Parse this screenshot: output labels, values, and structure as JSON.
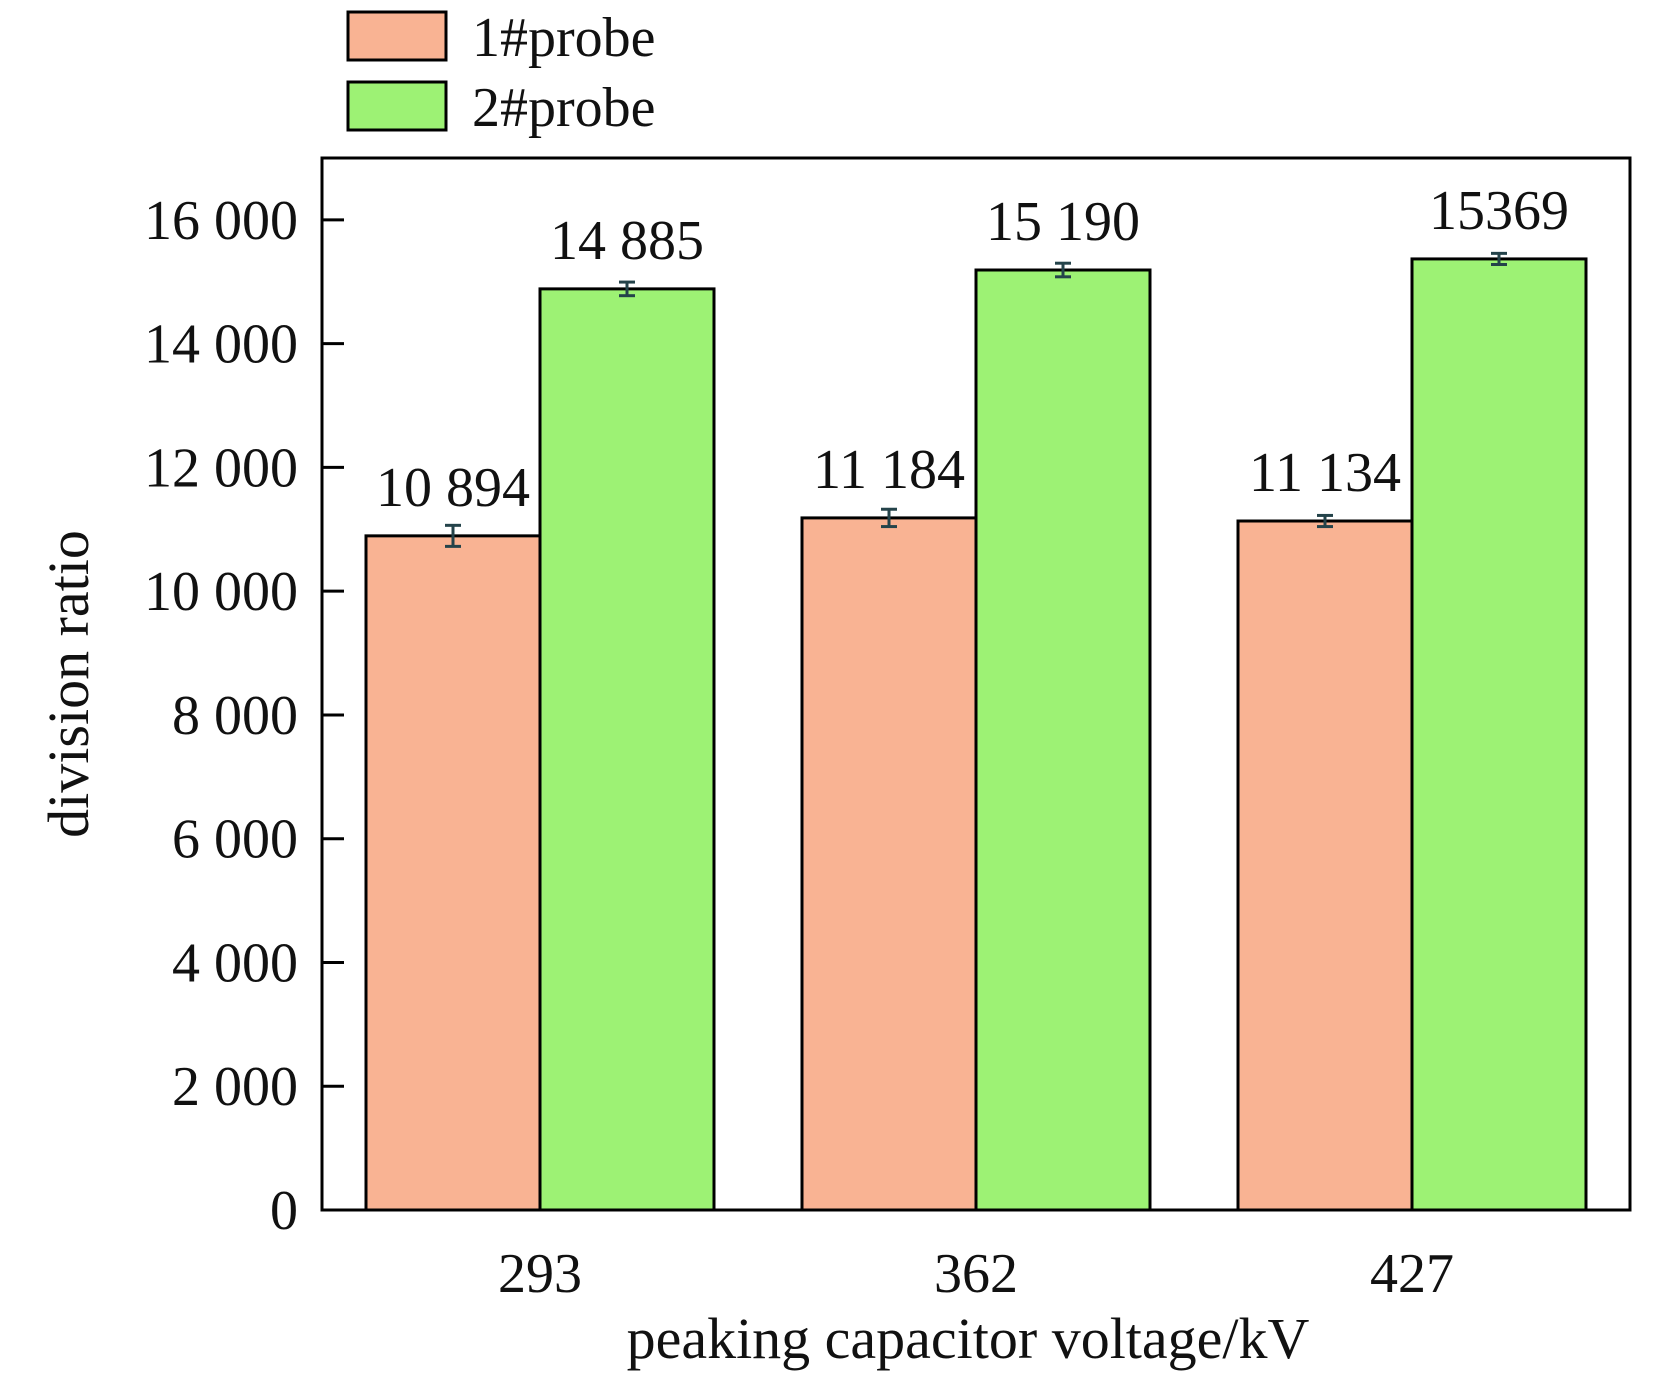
{
  "chart_data": {
    "type": "bar",
    "title": "",
    "xlabel": "peaking capacitor voltage/kV",
    "ylabel": "division ratio",
    "categories": [
      "293",
      "362",
      "427"
    ],
    "series": [
      {
        "name": "1#probe",
        "color": "#f9b393",
        "values": [
          10894,
          11184,
          11134
        ],
        "value_labels": [
          "10 894",
          "11 184",
          "11 134"
        ],
        "errors": [
          170,
          140,
          90
        ]
      },
      {
        "name": "2#probe",
        "color": "#9df274",
        "values": [
          14885,
          15190,
          15369
        ],
        "value_labels": [
          "14 885",
          "15 190",
          "15369"
        ],
        "errors": [
          110,
          110,
          90
        ]
      }
    ],
    "ylim": [
      0,
      17000
    ],
    "yticks": [
      0,
      2000,
      4000,
      6000,
      8000,
      10000,
      12000,
      14000,
      16000
    ],
    "ytick_labels": [
      "0",
      "2 000",
      "4 000",
      "6 000",
      "8 000",
      "10 000",
      "12 000",
      "14 000",
      "16 000"
    ],
    "grid": false,
    "legend_position": "top-left"
  }
}
